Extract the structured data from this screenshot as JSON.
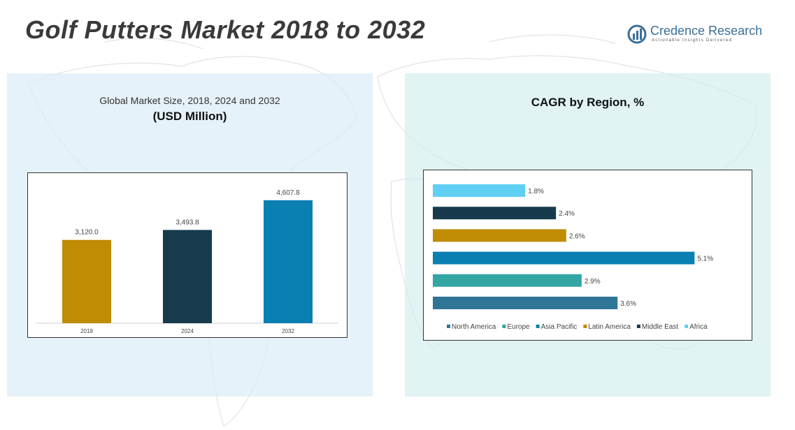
{
  "page_title": "Golf Putters Market 2018 to 2032",
  "logo": {
    "name": "Credence Research",
    "tagline": "Actionable Insights Delivered",
    "icon": "credence-logo-icon"
  },
  "left_panel": {
    "subtitle": "Global Market Size, 2018, 2024 and 2032",
    "unit": "(USD Million)"
  },
  "right_panel": {
    "title": "CAGR by Region, %"
  },
  "chart_data": [
    {
      "type": "bar",
      "orientation": "vertical",
      "title": "Global Market Size, 2018, 2024 and 2032",
      "ylabel": "(USD Million)",
      "categories": [
        "2018",
        "2024",
        "2032"
      ],
      "values": [
        3120.0,
        3493.8,
        4607.8
      ],
      "value_labels": [
        "3,120.0",
        "3,493.8",
        "4,607.8"
      ],
      "colors": [
        "#bf8c04",
        "#173b4d",
        "#0a7fb2"
      ],
      "ylim": [
        0,
        5100
      ],
      "grid": false,
      "legend": "none"
    },
    {
      "type": "bar",
      "orientation": "horizontal",
      "title": "CAGR by Region, %",
      "categories": [
        "North America",
        "Europe",
        "Asia Pacific",
        "Latin America",
        "Middle East",
        "Africa"
      ],
      "values": [
        3.6,
        2.9,
        5.1,
        2.6,
        2.4,
        1.8
      ],
      "value_labels": [
        "3.6%",
        "2.9%",
        "5.1%",
        "2.6%",
        "2.4%",
        "1.8%"
      ],
      "colors": [
        "#2e7596",
        "#33a6a3",
        "#0a7fb2",
        "#bf8c04",
        "#173b4d",
        "#5fd0f4"
      ],
      "xlim": [
        0,
        5.3
      ],
      "grid": false,
      "legend": "bottom"
    }
  ]
}
